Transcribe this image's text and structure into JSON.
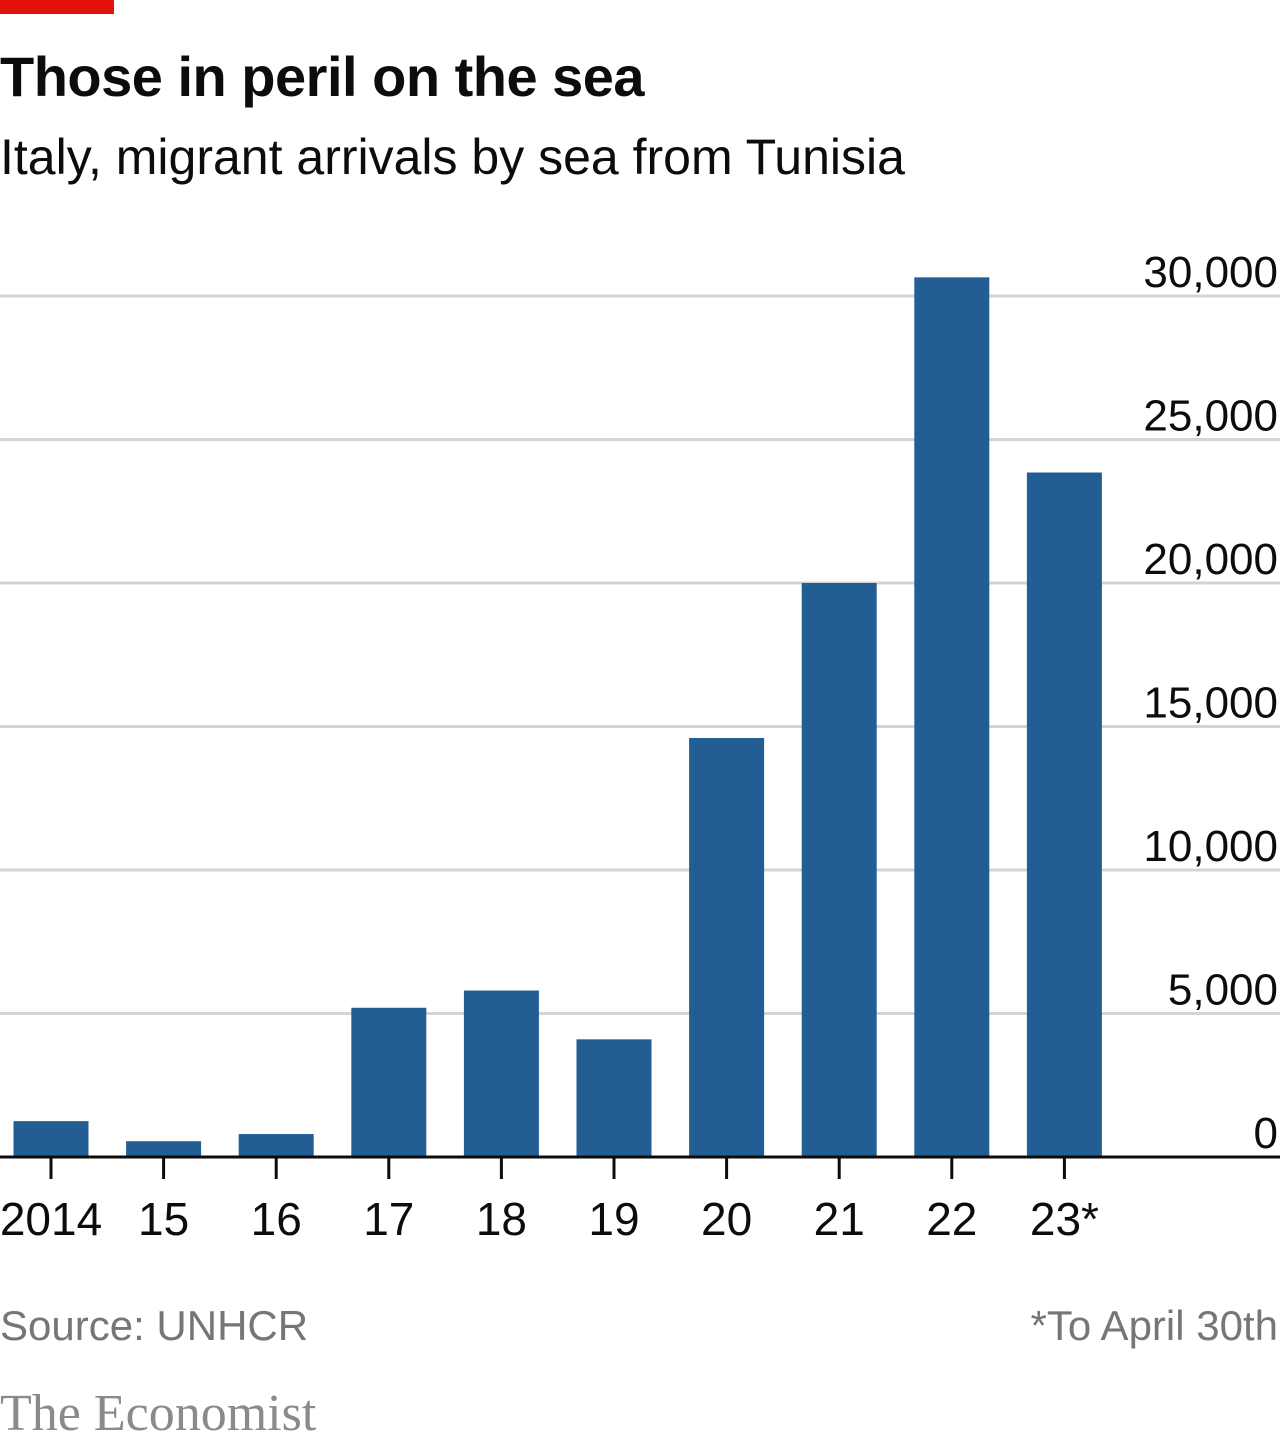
{
  "header": {
    "title": "Those in peril on the sea",
    "subtitle": "Italy, migrant arrivals by sea from Tunisia"
  },
  "footer": {
    "source": "Source: UNHCR",
    "footnote": "*To April 30th",
    "brand": "The Economist"
  },
  "colors": {
    "bar": "#225e94",
    "accent": "#e3120b",
    "grid": "#d4d4d4",
    "axis": "#0c0c0c"
  },
  "chart_data": {
    "type": "bar",
    "title": "Those in peril on the sea",
    "subtitle": "Italy, migrant arrivals by sea from Tunisia",
    "categories": [
      "2014",
      "15",
      "16",
      "17",
      "18",
      "19",
      "20",
      "21",
      "22",
      "23*"
    ],
    "values": [
      1250,
      550,
      800,
      5200,
      5800,
      4100,
      14600,
      20000,
      30650,
      23850
    ],
    "xlabel": "",
    "ylabel": "",
    "ylim": [
      0,
      30000
    ],
    "yticks": [
      0,
      5000,
      10000,
      15000,
      20000,
      25000,
      30000
    ],
    "ytick_labels": [
      "0",
      "5,000",
      "10,000",
      "15,000",
      "20,000",
      "25,000",
      "30,000"
    ],
    "y_axis_side": "right",
    "grid": true
  }
}
